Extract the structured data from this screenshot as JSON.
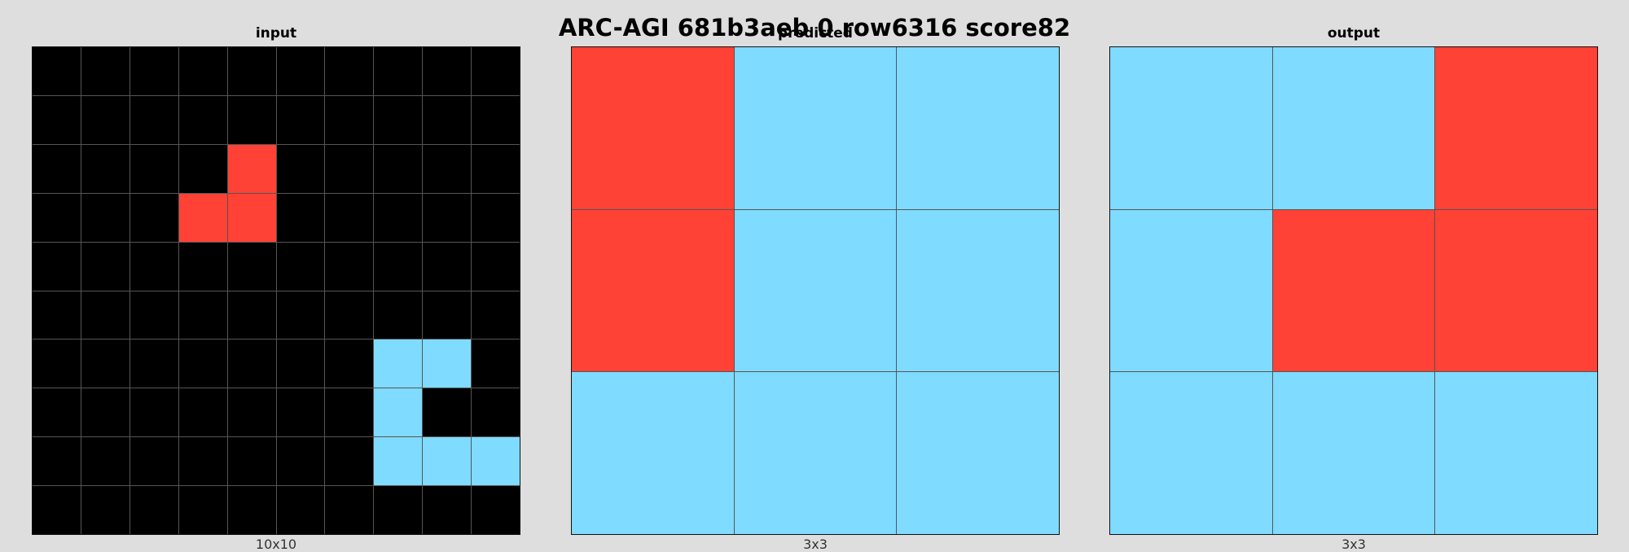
{
  "title": "ARC-AGI 681b3aeb 0 row6316 score82",
  "palette": {
    "0": "#000000",
    "2": "#ff4136",
    "8": "#7fdbff"
  },
  "panels": [
    {
      "id": "input",
      "title": "input",
      "size_label": "10x10",
      "grid": [
        [
          0,
          0,
          0,
          0,
          0,
          0,
          0,
          0,
          0,
          0
        ],
        [
          0,
          0,
          0,
          0,
          0,
          0,
          0,
          0,
          0,
          0
        ],
        [
          0,
          0,
          0,
          0,
          2,
          0,
          0,
          0,
          0,
          0
        ],
        [
          0,
          0,
          0,
          2,
          2,
          0,
          0,
          0,
          0,
          0
        ],
        [
          0,
          0,
          0,
          0,
          0,
          0,
          0,
          0,
          0,
          0
        ],
        [
          0,
          0,
          0,
          0,
          0,
          0,
          0,
          0,
          0,
          0
        ],
        [
          0,
          0,
          0,
          0,
          0,
          0,
          0,
          8,
          8,
          0
        ],
        [
          0,
          0,
          0,
          0,
          0,
          0,
          0,
          8,
          0,
          0
        ],
        [
          0,
          0,
          0,
          0,
          0,
          0,
          0,
          8,
          8,
          8
        ],
        [
          0,
          0,
          0,
          0,
          0,
          0,
          0,
          0,
          0,
          0
        ]
      ]
    },
    {
      "id": "predicted",
      "title": "predicted",
      "size_label": "3x3",
      "grid": [
        [
          2,
          8,
          8
        ],
        [
          2,
          8,
          8
        ],
        [
          8,
          8,
          8
        ]
      ]
    },
    {
      "id": "output",
      "title": "output",
      "size_label": "3x3",
      "grid": [
        [
          8,
          8,
          2
        ],
        [
          8,
          2,
          2
        ],
        [
          8,
          8,
          8
        ]
      ]
    }
  ]
}
